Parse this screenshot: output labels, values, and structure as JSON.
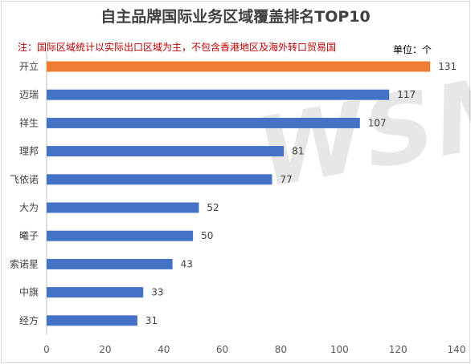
{
  "chart_data": {
    "type": "bar",
    "orientation": "horizontal",
    "title": "自主品牌国际业务区域覆盖排名TOP10",
    "note": "注：国际区域统计以实际出口区域为主，不包含香港地区及海外转口贸易国",
    "unit_label": "单位：个",
    "watermark": "WSM",
    "categories": [
      "开立",
      "迈瑞",
      "祥生",
      "理邦",
      "飞依诺",
      "大为",
      "曦子",
      "索诺星",
      "中旗",
      "经方"
    ],
    "values": [
      131,
      117,
      107,
      81,
      77,
      52,
      50,
      43,
      33,
      31
    ],
    "highlight_index": 0,
    "colors": {
      "highlight": "#ed7d31",
      "default": "#4472c4"
    },
    "xlim": [
      0,
      140
    ],
    "xticks": [
      0,
      20,
      40,
      60,
      80,
      100,
      120,
      140
    ],
    "grid": false,
    "legend": "none"
  }
}
